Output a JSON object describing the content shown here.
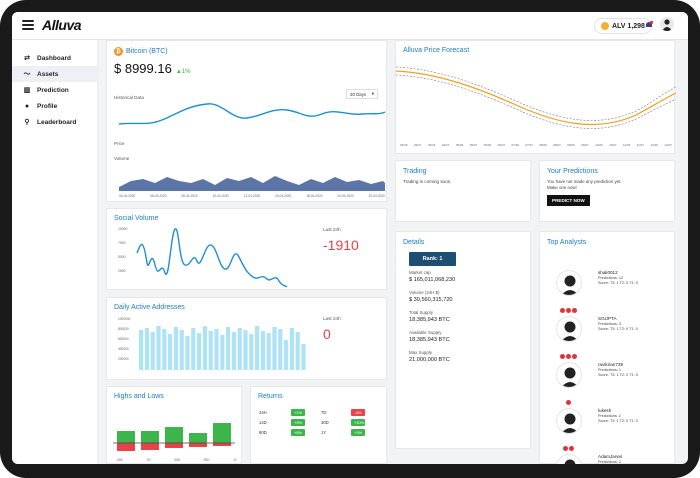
{
  "app": {
    "logo": "Alluva",
    "balance": "ALV 1,298"
  },
  "colors": {
    "accent": "#1f7bc1",
    "up": "#3cb54a",
    "down": "#e8434a",
    "forecast_line": "#f0a11c"
  },
  "sidebar": {
    "items": [
      {
        "label": "Dashboard",
        "icon": "dashboard-icon",
        "active": false
      },
      {
        "label": "Assets",
        "icon": "assets-icon",
        "active": true
      },
      {
        "label": "Prediction",
        "icon": "prediction-icon",
        "active": false
      },
      {
        "label": "Profile",
        "icon": "profile-icon",
        "active": false
      },
      {
        "label": "Leaderboard",
        "icon": "leaderboard-icon",
        "active": false
      }
    ]
  },
  "bitcoin": {
    "title": "Bitcoin (BTC)",
    "price": "$ 8999.16",
    "change": "1%",
    "historical_label": "Historical Data",
    "range_select": "30 Days",
    "price_label": "Price",
    "volume_label": "Volume",
    "dates": [
      "04-04-2020",
      "06-04-2020",
      "08-04-2020",
      "10-04-2020",
      "12-04-2020",
      "15-04-2020",
      "18-04-2020",
      "20-04-2020",
      "22-04-2020"
    ]
  },
  "forecast": {
    "title": "Alluva Price Forecast",
    "dates": [
      "03/26",
      "03/27",
      "04/26",
      "04/27",
      "05/26",
      "05/27",
      "06/26",
      "06/27",
      "07/26",
      "07/27",
      "08/26",
      "08/27",
      "09/26",
      "09/27",
      "10/26",
      "10/27",
      "11/26",
      "11/27",
      "12/26",
      "12/27"
    ]
  },
  "trading": {
    "title": "Trading",
    "text": "Trading is coming soon."
  },
  "predictions": {
    "title": "Your Predictions",
    "line1": "You have not made any prediction yet.",
    "line2": "Make one now!",
    "button": "PREDICT NOW"
  },
  "social": {
    "title": "Social Volume",
    "last_label": "Last 24h",
    "value": "-1910",
    "yticks": [
      "10000",
      "7500",
      "5000",
      "2500"
    ]
  },
  "daa": {
    "title": "Daily Active Addresses",
    "last_label": "Last 24h",
    "value": "0",
    "yticks": [
      "1000000",
      "800000",
      "600000",
      "400000",
      "200000"
    ]
  },
  "highs_lows": {
    "title": "Highs and Lows",
    "labels": [
      "24H",
      "7D",
      "30D",
      "90D",
      "1Y"
    ]
  },
  "returns": {
    "title": "Returns",
    "rows": [
      {
        "l1": "24H",
        "v1": "+1%",
        "c1": "green",
        "l2": "7D",
        "v2": "-4%",
        "c2": "red"
      },
      {
        "l1": "14D",
        "v1": "+9%",
        "c1": "green",
        "l2": "30D",
        "v2": "+10%",
        "c2": "green"
      },
      {
        "l1": "90D",
        "v1": "+8%",
        "c1": "green",
        "l2": "1Y",
        "v2": "+3%",
        "c2": "green"
      }
    ]
  },
  "details": {
    "title": "Details",
    "rank": "Rank: 1",
    "items": [
      {
        "label": "Market cap",
        "value": "$ 165,011,068,230"
      },
      {
        "label": "Volume (24H $)",
        "value": "$ 30,560,315,720"
      },
      {
        "label": "Total Supply",
        "value": "18,385,943 BTC"
      },
      {
        "label": "Available Supply",
        "value": "18,385,943 BTC"
      },
      {
        "label": "Max Supply",
        "value": "21,000,000 BTC"
      }
    ]
  },
  "analysts": {
    "title": "Top Analysts",
    "list": [
      {
        "name": "shali0012",
        "predictions": "Predictions: 12",
        "score": "Score: T3: 1 T2: 0 T1: 0",
        "dots": 3
      },
      {
        "name": "SGUPTA",
        "predictions": "Predictions: 3",
        "score": "Score: T3: 1 T2: 0 T1: 0",
        "dots": 3
      },
      {
        "name": "ravikiran739",
        "predictions": "Predictions: 1",
        "score": "Score: T3: 1 T2: 0 T1: 0",
        "dots": 1
      },
      {
        "name": "lukesh",
        "predictions": "Predictions: 2",
        "score": "Score: T3: 1 T2: 0 T1: 0",
        "dots": 2
      },
      {
        "name": "AdamJanes",
        "predictions": "Predictions: 2",
        "score": "Score: T3: 1 T2: 0 T1: 0",
        "dots": 0
      }
    ]
  }
}
